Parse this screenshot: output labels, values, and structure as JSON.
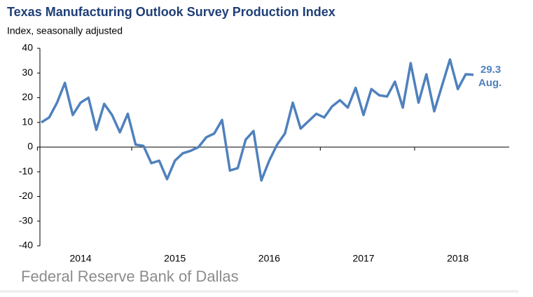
{
  "chart_data": {
    "type": "line",
    "title": "Texas Manufacturing Outlook Survey Production Index",
    "y_axis_label": "Index, seasonally adjusted",
    "source": "Federal Reserve Bank of Dallas",
    "annotations": [
      "29.3",
      "Aug."
    ],
    "categories": [
      null,
      null,
      null,
      null,
      null,
      "2014",
      null,
      null,
      null,
      null,
      null,
      null,
      null,
      null,
      null,
      null,
      null,
      "2015",
      null,
      null,
      null,
      null,
      null,
      null,
      null,
      null,
      null,
      null,
      null,
      "2016",
      null,
      null,
      null,
      null,
      null,
      null,
      null,
      null,
      null,
      null,
      null,
      "2017",
      null,
      null,
      null,
      null,
      null,
      null,
      null,
      null,
      null,
      null,
      null,
      "2018",
      null,
      null
    ],
    "series": [
      {
        "name": "Production Index",
        "color": "#4f81bd",
        "values": [
          10,
          12,
          18,
          26,
          13,
          18,
          20,
          7,
          17.5,
          13,
          6,
          13.5,
          1,
          0.5,
          -6.5,
          -5.5,
          -13,
          -5.5,
          -2.5,
          -1.5,
          0,
          4,
          5.5,
          11,
          -9.5,
          -8.5,
          3,
          6.5,
          -13.5,
          -5.5,
          1,
          5.5,
          18,
          7.5,
          10.5,
          13.5,
          12,
          16.5,
          19,
          16,
          24,
          13,
          23.5,
          21,
          20.5,
          26.5,
          16,
          34,
          18,
          29.5,
          14.5,
          25,
          35.5,
          23.5,
          29.5,
          29.3
        ]
      }
    ],
    "ylim": [
      -40,
      40
    ],
    "yticks": [
      -40,
      -30,
      -20,
      -10,
      0,
      10,
      20,
      30,
      40
    ],
    "grid": false
  }
}
